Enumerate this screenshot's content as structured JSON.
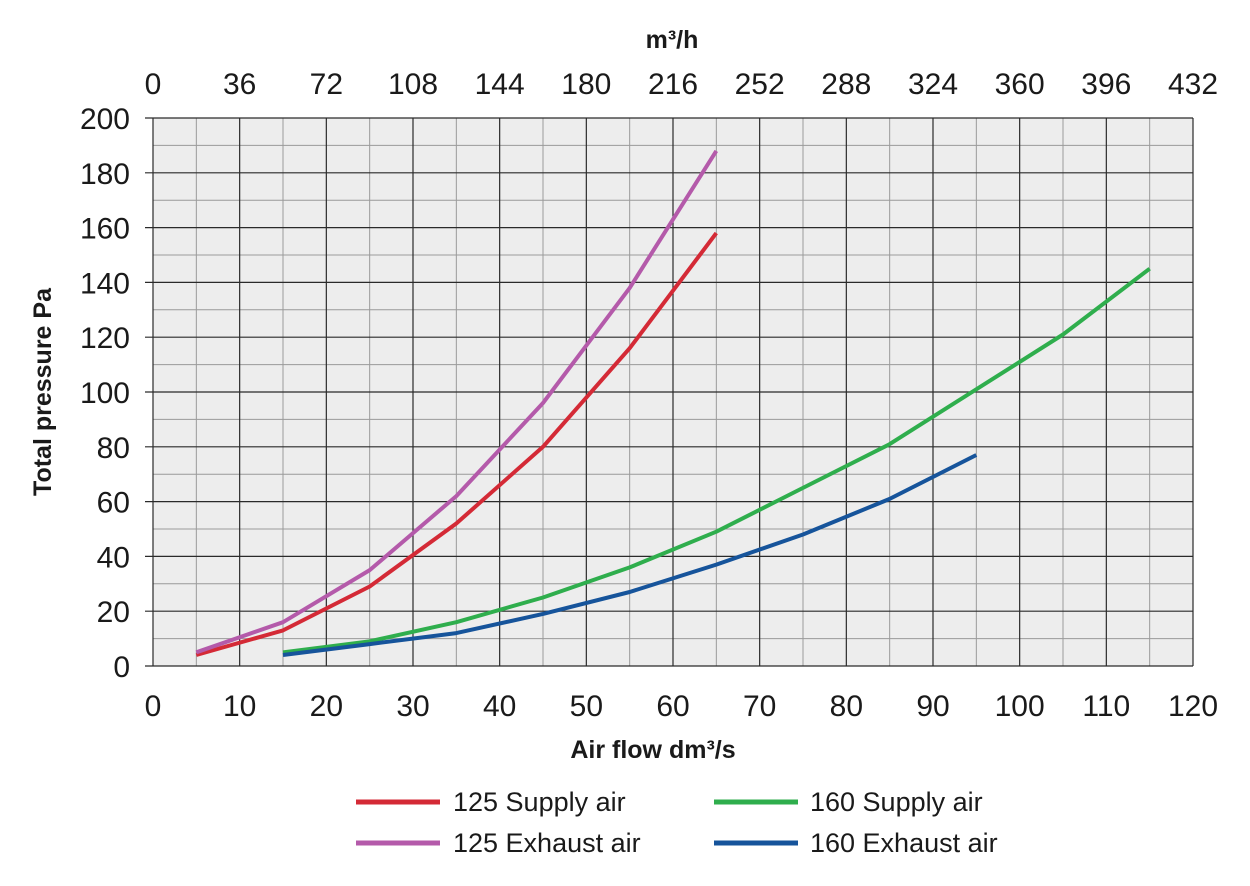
{
  "chart_data": {
    "type": "line",
    "xlabel": "Air flow dm³/s",
    "ylabel": "Total pressure Pa",
    "x2label": "m³/h",
    "xlim": [
      0,
      120
    ],
    "ylim": [
      0,
      200
    ],
    "x2lim": [
      0,
      432
    ],
    "xticks": [
      0,
      10,
      20,
      30,
      40,
      50,
      60,
      70,
      80,
      90,
      100,
      110,
      120
    ],
    "yticks": [
      0,
      20,
      40,
      60,
      80,
      100,
      120,
      140,
      160,
      180,
      200
    ],
    "x2ticks": [
      0,
      36,
      72,
      108,
      144,
      180,
      216,
      252,
      288,
      324,
      360,
      396,
      432
    ],
    "grid": true,
    "legend_position": "bottom",
    "series": [
      {
        "name": "125 Supply air",
        "color": "#d42a36",
        "x": [
          5,
          15,
          25,
          35,
          45,
          55,
          65
        ],
        "y": [
          4,
          13,
          29,
          52,
          80,
          116,
          158
        ]
      },
      {
        "name": "125 Exhaust air",
        "color": "#b45aaa",
        "x": [
          5,
          15,
          25,
          35,
          45,
          55,
          65
        ],
        "y": [
          5,
          16,
          35,
          62,
          96,
          138,
          188
        ]
      },
      {
        "name": "160 Supply air",
        "color": "#2fae4d",
        "x": [
          15,
          25,
          35,
          45,
          55,
          65,
          75,
          85,
          95,
          105,
          115
        ],
        "y": [
          5,
          9,
          16,
          25,
          36,
          49,
          65,
          81,
          101,
          121,
          145
        ]
      },
      {
        "name": "160 Exhaust air",
        "color": "#16549b",
        "x": [
          15,
          25,
          35,
          45,
          55,
          65,
          75,
          85,
          95
        ],
        "y": [
          4,
          8,
          12,
          19,
          27,
          37,
          48,
          61,
          77
        ]
      }
    ]
  }
}
